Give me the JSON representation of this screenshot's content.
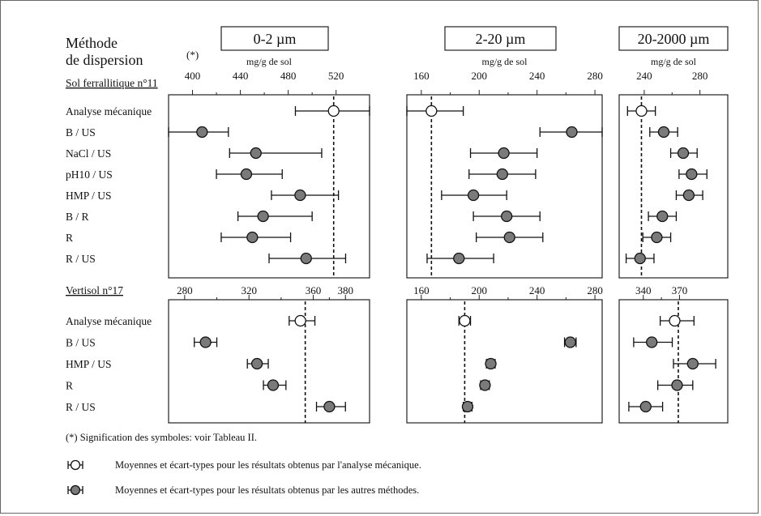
{
  "header": {
    "method_title_line1": "Méthode",
    "method_title_line2": "de dispersion",
    "method_footnote_mark": "(*)"
  },
  "legend": {
    "note": "(*) Signification des symboles: voir Tableau II.",
    "open_symbol_text": "Moyennes et écart-types pour les résultats obtenus par l'analyse mécanique.",
    "filled_symbol_text": "Moyennes et écart-types pour les résultats obtenus par les autres méthodes."
  },
  "colors": {
    "filled_marker": "#7a7a7a",
    "open_marker": "#ffffff",
    "line": "#111111"
  },
  "chart_data": [
    {
      "type": "scatter",
      "group": "Sol ferrallitique n°11",
      "fraction": "0-2 µm",
      "unit": "mg/g de sol",
      "xlim": [
        380,
        548
      ],
      "xticks": [
        400,
        440,
        480,
        520
      ],
      "reference": 518,
      "categories": [
        "Analyse mécanique",
        "B / US",
        "NaCl / US",
        "pH10 / US",
        "HMP / US",
        "B / R",
        "R",
        "R / US"
      ],
      "mean": [
        518,
        408,
        453,
        445,
        490,
        459,
        450,
        495
      ],
      "low": [
        486,
        380,
        431,
        420,
        466,
        438,
        424,
        464
      ],
      "high": [
        548,
        430,
        508,
        475,
        522,
        500,
        482,
        528
      ],
      "open": [
        true,
        false,
        false,
        false,
        false,
        false,
        false,
        false
      ]
    },
    {
      "type": "scatter",
      "group": "Sol ferrallitique n°11",
      "fraction": "2-20 µm",
      "unit": "mg/g de sol",
      "xlim": [
        150,
        285
      ],
      "xticks": [
        160,
        200,
        240,
        280
      ],
      "reference": 167,
      "categories": [
        "Analyse mécanique",
        "B / US",
        "NaCl / US",
        "pH10 / US",
        "HMP / US",
        "B / R",
        "R",
        "R / US"
      ],
      "mean": [
        167,
        264,
        217,
        216,
        196,
        219,
        221,
        186
      ],
      "low": [
        150,
        242,
        194,
        193,
        174,
        196,
        198,
        164
      ],
      "high": [
        189,
        285,
        240,
        239,
        219,
        242,
        244,
        210
      ],
      "open": [
        true,
        false,
        false,
        false,
        false,
        false,
        false,
        false
      ]
    },
    {
      "type": "scatter",
      "group": "Sol ferrallitique n°11",
      "fraction": "20-2000 µm",
      "unit": "mg/g de sol",
      "xlim": [
        222,
        300
      ],
      "xticks": [
        240,
        280
      ],
      "reference": 238,
      "categories": [
        "Analyse mécanique",
        "B / US",
        "NaCl / US",
        "pH10 / US",
        "HMP / US",
        "B / R",
        "R",
        "R / US"
      ],
      "mean": [
        238,
        254,
        268,
        274,
        272,
        253,
        249,
        237
      ],
      "low": [
        228,
        244,
        259,
        265,
        263,
        243,
        239,
        227
      ],
      "high": [
        248,
        264,
        278,
        285,
        282,
        263,
        259,
        247
      ],
      "open": [
        true,
        false,
        false,
        false,
        false,
        false,
        false,
        false
      ]
    },
    {
      "type": "scatter",
      "group": "Vertisol n°17",
      "fraction": "0-2 µm",
      "unit": "mg/g de sol",
      "xlim": [
        270,
        395
      ],
      "xticks": [
        280,
        320,
        360,
        380
      ],
      "reference": 355,
      "categories": [
        "Analyse mécanique",
        "B / US",
        "HMP / US",
        "R",
        "R / US"
      ],
      "mean": [
        352,
        293,
        325,
        335,
        370
      ],
      "low": [
        345,
        286,
        319,
        329,
        362
      ],
      "high": [
        361,
        300,
        332,
        343,
        380
      ],
      "open": [
        true,
        false,
        false,
        false,
        false
      ]
    },
    {
      "type": "scatter",
      "group": "Vertisol n°17",
      "fraction": "2-20 µm",
      "unit": "mg/g de sol",
      "xlim": [
        150,
        285
      ],
      "xticks": [
        160,
        200,
        240,
        280
      ],
      "reference": 190,
      "categories": [
        "Analyse mécanique",
        "B / US",
        "HMP / US",
        "R",
        "R / US"
      ],
      "mean": [
        190,
        263,
        208,
        204,
        192
      ],
      "low": [
        186,
        259,
        205,
        201,
        189
      ],
      "high": [
        194,
        267,
        211,
        207,
        195
      ],
      "open": [
        true,
        false,
        false,
        false,
        false
      ]
    },
    {
      "type": "scatter",
      "group": "Vertisol n°17",
      "fraction": "20-2000 µm",
      "unit": "mg/g de sol",
      "xlim": [
        320,
        410
      ],
      "xticks": [
        340,
        370
      ],
      "reference": 369,
      "categories": [
        "Analyse mécanique",
        "B / US",
        "HMP / US",
        "R",
        "R / US"
      ],
      "mean": [
        366,
        347,
        381,
        368,
        342
      ],
      "low": [
        354,
        332,
        365,
        352,
        328
      ],
      "high": [
        382,
        364,
        400,
        381,
        356
      ],
      "open": [
        true,
        false,
        false,
        false,
        false
      ]
    }
  ]
}
